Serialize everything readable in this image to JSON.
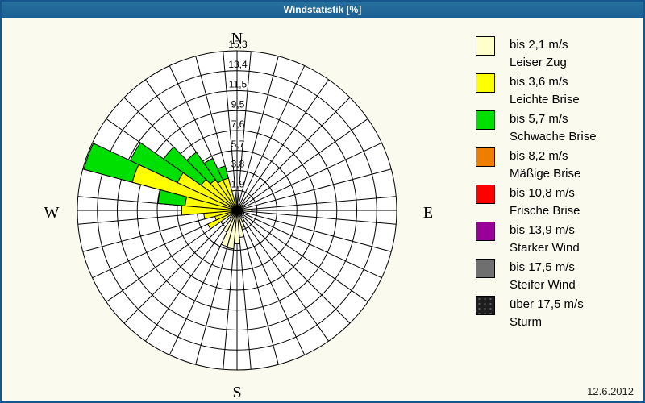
{
  "window": {
    "title": "Windstatistik [%]"
  },
  "footer": {
    "date": "12.6.2012"
  },
  "compass": {
    "north": "N",
    "east": "E",
    "south": "S",
    "west": "W"
  },
  "colors": {
    "frame_border": "#17568C",
    "titlebar_blue": "#1F6496",
    "background": "#FAFAEE",
    "grid": "#000000",
    "leiser_zug": "#FFFFCC",
    "leichte_brise": "#FFFF00",
    "schwache_brise": "#00E000",
    "maessige_brise": "#EF7D00",
    "frische_brise": "#FF0000",
    "starker_wind": "#990099",
    "steifer_wind": "#6F6F6F",
    "sturm": "#1E1E1E"
  },
  "legend": {
    "items": [
      {
        "speed": "bis 2,1 m/s",
        "name": "Leiser Zug",
        "color": "#FFFFCC",
        "speckled": false
      },
      {
        "speed": "bis 3,6 m/s",
        "name": "Leichte Brise",
        "color": "#FFFF00",
        "speckled": false
      },
      {
        "speed": "bis 5,7 m/s",
        "name": "Schwache Brise",
        "color": "#00E000",
        "speckled": false
      },
      {
        "speed": "bis 8,2 m/s",
        "name": "Mäßige Brise",
        "color": "#EF7D00",
        "speckled": false
      },
      {
        "speed": "bis 10,8 m/s",
        "name": "Frische Brise",
        "color": "#FF0000",
        "speckled": false
      },
      {
        "speed": "bis 13,9 m/s",
        "name": "Starker Wind",
        "color": "#990099",
        "speckled": false
      },
      {
        "speed": "bis 17,5 m/s",
        "name": "Steifer Wind",
        "color": "#6F6F6F",
        "speckled": false
      },
      {
        "speed": "über 17,5 m/s",
        "name": "Sturm",
        "color": "#1E1E1E",
        "speckled": true
      }
    ]
  },
  "chart_data": {
    "type": "wind_rose",
    "title": "Windstatistik [%]",
    "unit": "%",
    "sector_width_deg": 10,
    "axis_max": 15.3,
    "ring_step": 1.9125,
    "ring_labels": [
      "1,9",
      "3,8",
      "5,7",
      "7,6",
      "9,5",
      "11,5",
      "13,4",
      "15,3"
    ],
    "ring_values": [
      1.9,
      3.8,
      5.7,
      7.6,
      9.5,
      11.5,
      13.4,
      15.3
    ],
    "grid": "on",
    "legend_position": "right",
    "directions_deg": [
      0,
      10,
      20,
      30,
      40,
      50,
      60,
      70,
      80,
      90,
      100,
      110,
      120,
      130,
      140,
      150,
      160,
      170,
      180,
      190,
      200,
      210,
      220,
      230,
      240,
      250,
      260,
      270,
      280,
      290,
      300,
      310,
      320,
      330,
      340,
      350
    ],
    "series": [
      {
        "name": "bis 2,1 m/s (Leiser Zug)",
        "color_key": "leiser_zug",
        "values": [
          0.3,
          0.3,
          0.5,
          0.3,
          0.6,
          0.3,
          0.7,
          0.4,
          0.5,
          1.4,
          0.5,
          0.7,
          0.5,
          0.4,
          0.6,
          1.2,
          1.7,
          2.6,
          3.2,
          3.7,
          3.6,
          2.3,
          1.0,
          0.7,
          0.4,
          0.4,
          0.4,
          0.4,
          0.4,
          0.4,
          0.4,
          0.4,
          0.3,
          0.3,
          0.3,
          0.3
        ]
      },
      {
        "name": "bis 3,6 m/s (Leichte Brise)",
        "color_key": "leichte_brise",
        "values": [
          0,
          0,
          0,
          0,
          0,
          0,
          0,
          0,
          0,
          0,
          0,
          0,
          0,
          0,
          0,
          0,
          0,
          0,
          0,
          0,
          0,
          0,
          0,
          0,
          2.7,
          1.8,
          2.8,
          4.9,
          4.6,
          10.0,
          5.9,
          3.8,
          3.3,
          2.9,
          2.9,
          0.5
        ]
      },
      {
        "name": "bis 5,7 m/s (Schwache Brise)",
        "color_key": "schwache_brise",
        "values": [
          0,
          0,
          0,
          0,
          0,
          0,
          0,
          0,
          0,
          0,
          0,
          0,
          0,
          0,
          0,
          0,
          0,
          0,
          0,
          0,
          0,
          0,
          0,
          0,
          0,
          0,
          0,
          0,
          2.6,
          4.8,
          5.0,
          4.4,
          3.2,
          2.3,
          1.2,
          0
        ]
      }
    ]
  }
}
